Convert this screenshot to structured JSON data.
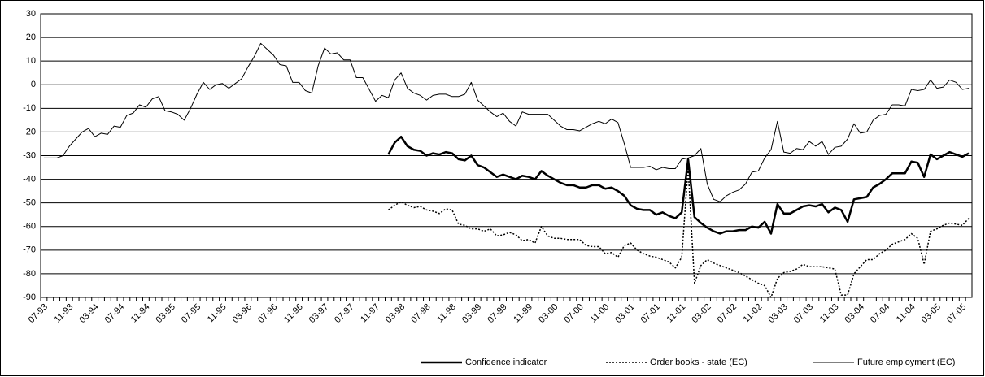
{
  "chart_data": {
    "type": "line",
    "categories": [
      "07-93",
      null,
      null,
      null,
      "11-93",
      null,
      null,
      null,
      "03-94",
      null,
      null,
      null,
      "07-94",
      null,
      null,
      null,
      "11-94",
      null,
      null,
      null,
      "03-95",
      null,
      null,
      null,
      "07-95",
      null,
      null,
      null,
      "11-95",
      null,
      null,
      null,
      "03-96",
      null,
      null,
      null,
      "07-96",
      null,
      null,
      null,
      "11-96",
      null,
      null,
      null,
      "03-97",
      null,
      null,
      null,
      "07-97",
      null,
      null,
      null,
      "11-97",
      null,
      null,
      null,
      "03-98",
      null,
      null,
      null,
      "07-98",
      null,
      null,
      null,
      "11-98",
      null,
      null,
      null,
      "03-99",
      null,
      null,
      null,
      "07-99",
      null,
      null,
      null,
      "11-99",
      null,
      null,
      null,
      "03-00",
      null,
      null,
      null,
      "07-00",
      null,
      null,
      null,
      "11-00",
      null,
      null,
      null,
      "03-01",
      null,
      null,
      null,
      "07-01",
      null,
      null,
      null,
      "11-01",
      null,
      null,
      null,
      "03-02",
      null,
      null,
      null,
      "07-02",
      null,
      null,
      null,
      "11-02",
      null,
      null,
      null,
      "03-03",
      null,
      null,
      null,
      "07-03",
      null,
      null,
      null,
      "11-03",
      null,
      null,
      null,
      "03-04",
      null,
      null,
      null,
      "07-04",
      null,
      null,
      null,
      "11-04",
      null,
      null,
      null,
      "03-05",
      null,
      null,
      null,
      "07-05",
      null
    ],
    "series": [
      {
        "name": "Confidence indicator",
        "color": "#000000",
        "line_width": 2.5,
        "line_style": "solid",
        "values": [
          null,
          null,
          null,
          null,
          null,
          null,
          null,
          null,
          null,
          null,
          null,
          null,
          null,
          null,
          null,
          null,
          null,
          null,
          null,
          null,
          null,
          null,
          null,
          null,
          null,
          null,
          null,
          null,
          null,
          null,
          null,
          null,
          null,
          null,
          null,
          null,
          null,
          null,
          null,
          null,
          null,
          null,
          null,
          null,
          null,
          null,
          null,
          null,
          null,
          null,
          null,
          null,
          null,
          null,
          -29.5,
          -24.5,
          -22,
          -26,
          -27.5,
          -28,
          -30,
          -29,
          -29.5,
          -28.5,
          -29,
          -31.5,
          -32,
          -30,
          -34,
          -35,
          -37,
          -39,
          -38,
          -39,
          -40,
          -38.5,
          -39,
          -40,
          -36.5,
          -38.5,
          -40,
          -41.5,
          -42.5,
          -42.5,
          -43.5,
          -43.5,
          -42.5,
          -42.5,
          -44,
          -43.5,
          -45,
          -47,
          -51,
          -52.5,
          -53,
          -53,
          -55,
          -54,
          -55.5,
          -56.5,
          -54,
          -31.5,
          -56,
          -58.5,
          -60.5,
          -62,
          -63,
          -62,
          -62,
          -61.5,
          -61.5,
          -60,
          -60.5,
          -58,
          -63,
          -50.5,
          -54.5,
          -54.5,
          -53,
          -51.5,
          -51,
          -51.5,
          -50.5,
          -54,
          -52,
          -53,
          -58,
          -48.5,
          -48,
          -47.5,
          -43.5,
          -42,
          -40,
          -37.5,
          -37.5,
          -37.5,
          -32.5,
          -33,
          -39,
          -29.5,
          -31.5,
          -30,
          -28.5,
          -29.5,
          -30.5,
          -29
        ]
      },
      {
        "name": "Order books - state (EC)",
        "color": "#000000",
        "line_width": 1.5,
        "line_style": "dotted",
        "values": [
          null,
          null,
          null,
          null,
          null,
          null,
          null,
          null,
          null,
          null,
          null,
          null,
          null,
          null,
          null,
          null,
          null,
          null,
          null,
          null,
          null,
          null,
          null,
          null,
          null,
          null,
          null,
          null,
          null,
          null,
          null,
          null,
          null,
          null,
          null,
          null,
          null,
          null,
          null,
          null,
          null,
          null,
          null,
          null,
          null,
          null,
          null,
          null,
          null,
          null,
          null,
          null,
          null,
          null,
          -53,
          -51,
          -49.5,
          -51,
          -52,
          -51.5,
          -53,
          -53.5,
          -54.5,
          -52.5,
          -53,
          -59,
          -59.5,
          -61,
          -61,
          -62,
          -61,
          -64,
          -63.5,
          -62.5,
          -63.5,
          -66,
          -65.5,
          -67,
          -60,
          -64,
          -65,
          -65,
          -65.5,
          -65.5,
          -65.5,
          -68,
          -68.5,
          -68.5,
          -71.5,
          -71,
          -73,
          -68,
          -67,
          -70,
          -71.5,
          -72.5,
          -73,
          -74,
          -75,
          -77.5,
          -73,
          -35,
          -84,
          -76.5,
          -74,
          -75.5,
          -76.5,
          -77.5,
          -78.5,
          -79.5,
          -81,
          -82.5,
          -84,
          -85,
          -90,
          -82,
          -79.5,
          -79,
          -78,
          -76,
          -77,
          -77,
          -77,
          -77.5,
          -78,
          -89,
          -89,
          -80,
          -77,
          -74,
          -74,
          -71.5,
          -70,
          -67.5,
          -66.5,
          -65.5,
          -63,
          -65,
          -76,
          -62,
          -61,
          -59.5,
          -58.5,
          -59,
          -59.5,
          -56.5
        ]
      },
      {
        "name": "Future employment (EC)",
        "color": "#000000",
        "line_width": 1,
        "line_style": "solid",
        "values": [
          -31,
          -31,
          -31,
          -30,
          -26,
          -23,
          -20,
          -18.5,
          -22,
          -20.5,
          -21,
          -17.5,
          -18,
          -13,
          -12,
          -8.5,
          -9.5,
          -6,
          -5,
          -11,
          -11.5,
          -12.5,
          -15,
          -10,
          -4,
          1,
          -2,
          0,
          0.5,
          -1.5,
          0.5,
          2.5,
          7.5,
          12,
          17.5,
          15,
          12.5,
          8.5,
          8,
          1,
          1,
          -2.5,
          -3.5,
          8,
          15.5,
          13,
          13.5,
          10.5,
          10.5,
          3,
          3,
          -2,
          -7,
          -4.5,
          -5.5,
          2,
          5,
          -1.5,
          -3.5,
          -4.5,
          -6.5,
          -4.5,
          -4,
          -4,
          -5,
          -5,
          -4,
          1,
          -6.5,
          -9,
          -11.5,
          -13.5,
          -12,
          -15.5,
          -17.5,
          -11.5,
          -12.5,
          -12.5,
          -12.5,
          -12.5,
          -15,
          -17.5,
          -19,
          -19,
          -19.5,
          -18,
          -16.5,
          -15.5,
          -16.5,
          -14.5,
          -16,
          -25,
          -35,
          -35,
          -35,
          -34.5,
          -36,
          -35,
          -35.5,
          -35.5,
          -31.5,
          -31,
          -30,
          -27,
          -42,
          -48.5,
          -49.5,
          -47,
          -45.5,
          -44.5,
          -42,
          -37,
          -36.5,
          -31,
          -27.5,
          -15.5,
          -28.5,
          -29,
          -27,
          -27.5,
          -24,
          -26,
          -24,
          -29.5,
          -26.5,
          -26,
          -23,
          -16.5,
          -20.5,
          -20,
          -15,
          -13,
          -12.5,
          -8.5,
          -8.5,
          -9,
          -2,
          -2.5,
          -2,
          2,
          -1.5,
          -1,
          2,
          1,
          -2,
          -1.5
        ]
      }
    ],
    "ylim": [
      -90,
      30
    ],
    "yticks": [
      30,
      20,
      10,
      0,
      -10,
      -20,
      -30,
      -40,
      -50,
      -60,
      -70,
      -80,
      -90
    ],
    "grid": true,
    "legend": "bottom-right"
  }
}
